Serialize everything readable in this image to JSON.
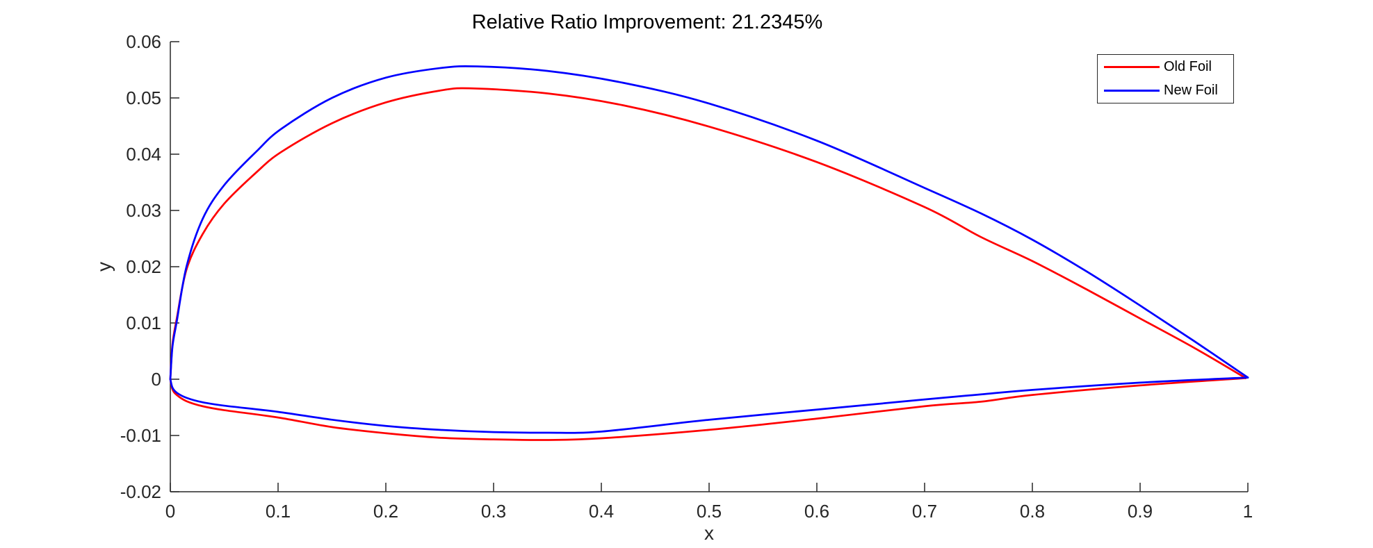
{
  "figure": {
    "background": "#ffffff",
    "axis_color": "#262626",
    "title_color": "#000000"
  },
  "chart_data": {
    "type": "line",
    "title": "Relative Ratio Improvement: 21.2345%",
    "xlabel": "x",
    "ylabel": "y",
    "xlim": [
      0,
      1
    ],
    "ylim": [
      -0.02,
      0.06
    ],
    "grid": false,
    "x_ticks": {
      "values": [
        0,
        0.1,
        0.2,
        0.3,
        0.4,
        0.5,
        0.6,
        0.7,
        0.8,
        0.9,
        1
      ],
      "labels": [
        "0",
        "0.1",
        "0.2",
        "0.3",
        "0.4",
        "0.5",
        "0.6",
        "0.7",
        "0.8",
        "0.9",
        "1"
      ]
    },
    "y_ticks": {
      "values": [
        -0.02,
        -0.01,
        0,
        0.01,
        0.02,
        0.03,
        0.04,
        0.05,
        0.06
      ],
      "labels": [
        "-0.02",
        "-0.01",
        "0",
        "0.01",
        "0.02",
        "0.03",
        "0.04",
        "0.05",
        "0.06"
      ]
    },
    "legend": {
      "position": "northeast",
      "border_color": "#262626",
      "entries": [
        {
          "label": "Old Foil",
          "color": "#ff0000"
        },
        {
          "label": "New Foil",
          "color": "#0000ff"
        }
      ]
    },
    "series": [
      {
        "name": "Old Foil",
        "color": "#ff0000",
        "line_width": 2.75,
        "upper": {
          "x": [
            0,
            0.002,
            0.006,
            0.015,
            0.03,
            0.05,
            0.08,
            0.103,
            0.15,
            0.2,
            0.25,
            0.28,
            0.35,
            0.42,
            0.5,
            0.6,
            0.7,
            0.752,
            0.8,
            0.85,
            0.9,
            0.95,
            0.998
          ],
          "y": [
            0,
            0.0062,
            0.0108,
            0.0195,
            0.0258,
            0.0312,
            0.0368,
            0.0404,
            0.0455,
            0.0492,
            0.0513,
            0.0517,
            0.0508,
            0.0487,
            0.0449,
            0.0386,
            0.0306,
            0.0253,
            0.021,
            0.016,
            0.0108,
            0.0056,
            0.0002
          ]
        },
        "lower": {
          "x": [
            0,
            0.002,
            0.006,
            0.015,
            0.03,
            0.05,
            0.1,
            0.15,
            0.2,
            0.25,
            0.3,
            0.35,
            0.4,
            0.5,
            0.6,
            0.7,
            0.752,
            0.8,
            0.9,
            0.998
          ],
          "y": [
            0,
            -0.0018,
            -0.0028,
            -0.0039,
            -0.0048,
            -0.0055,
            -0.0068,
            -0.0085,
            -0.0096,
            -0.0104,
            -0.0107,
            -0.0108,
            -0.0105,
            -0.009,
            -0.007,
            -0.0048,
            -0.004,
            -0.0028,
            -0.0011,
            0.0002
          ]
        }
      },
      {
        "name": "New Foil",
        "color": "#0000ff",
        "line_width": 2.75,
        "upper": {
          "x": [
            0,
            0.002,
            0.006,
            0.015,
            0.03,
            0.05,
            0.08,
            0.103,
            0.15,
            0.2,
            0.25,
            0.285,
            0.35,
            0.42,
            0.5,
            0.6,
            0.7,
            0.752,
            0.8,
            0.85,
            0.9,
            0.95,
            1.0
          ],
          "y": [
            0,
            0.0058,
            0.0103,
            0.02,
            0.0285,
            0.0345,
            0.0405,
            0.0445,
            0.05,
            0.0536,
            0.0553,
            0.0556,
            0.0548,
            0.0527,
            0.049,
            0.0424,
            0.034,
            0.0295,
            0.0248,
            0.0192,
            0.0131,
            0.0068,
            0.0003
          ]
        },
        "lower": {
          "x": [
            0,
            0.002,
            0.006,
            0.015,
            0.03,
            0.05,
            0.1,
            0.15,
            0.2,
            0.25,
            0.3,
            0.35,
            0.4,
            0.5,
            0.6,
            0.7,
            0.752,
            0.8,
            0.9,
            1.0
          ],
          "y": [
            0,
            -0.0015,
            -0.0024,
            -0.0033,
            -0.0041,
            -0.0047,
            -0.0058,
            -0.0072,
            -0.0083,
            -0.009,
            -0.0094,
            -0.0095,
            -0.0093,
            -0.0072,
            -0.0054,
            -0.0036,
            -0.0027,
            -0.0019,
            -0.0006,
            0.0003
          ]
        }
      }
    ]
  }
}
